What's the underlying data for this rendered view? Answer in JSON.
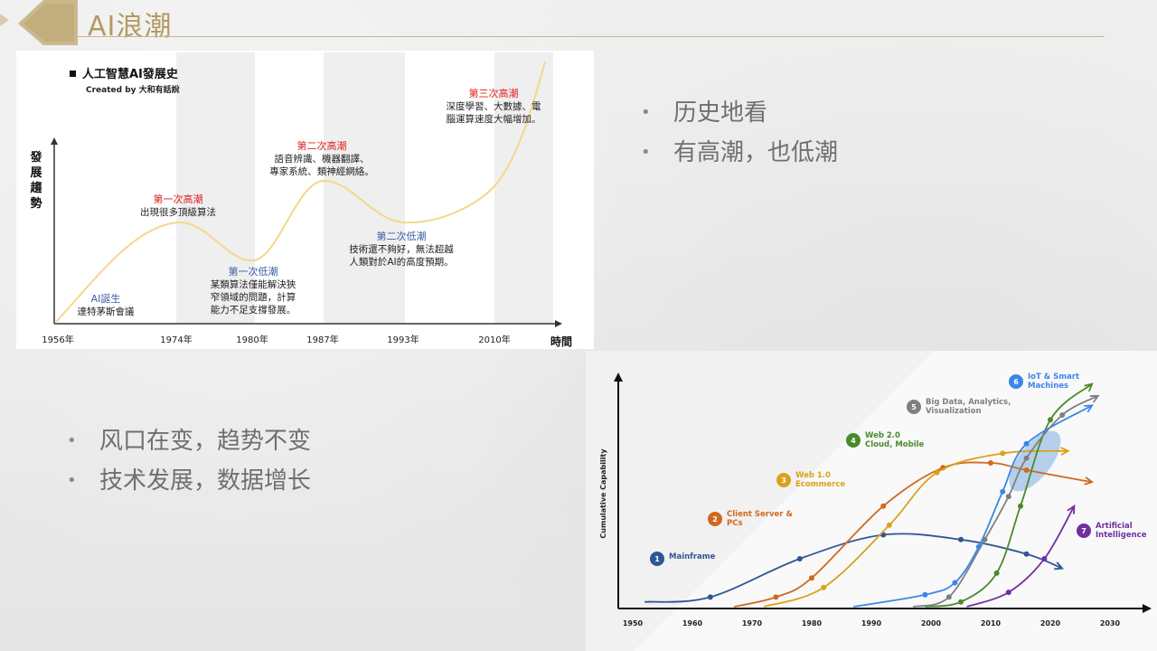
{
  "slide": {
    "title": "AI浪潮"
  },
  "colors": {
    "accent_gold": "#b39a62"
  },
  "bullets_right": [
    "历史地看",
    "有高潮，也低潮"
  ],
  "bullets_left": [
    "风口在变，趋势不变",
    "技术发展，数据增长"
  ],
  "chart_data": [
    {
      "type": "line",
      "title": "人工智慧AI發展史",
      "subtitle": "Created by 大和有話說",
      "ylabel": "發展趨勢",
      "xlabel": "時間",
      "x_ticks": [
        "1956年",
        "1974年",
        "1980年",
        "1987年",
        "1993年",
        "2010年"
      ],
      "shaded_periods": [
        [
          "1974年",
          "1980年"
        ],
        [
          "1987年",
          "1993年"
        ],
        [
          "2010年",
          ""
        ]
      ],
      "curve_color": "#f2d88a",
      "annotations": [
        {
          "heading": "AI誕生",
          "body": [
            "達特茅斯會議"
          ],
          "color": "#3b5ba5"
        },
        {
          "heading": "第一次高潮",
          "body": [
            "出現很多頂級算法"
          ],
          "color": "#e02020"
        },
        {
          "heading": "第一次低潮",
          "body": [
            "某類算法僅能解決狹",
            "窄領域的問題，計算",
            "能力不足支撐發展。"
          ],
          "color": "#3b5ba5"
        },
        {
          "heading": "第二次高潮",
          "body": [
            "語音辨識、機器翻譯、",
            "專家系統、類神經網絡。"
          ],
          "color": "#e02020"
        },
        {
          "heading": "第二次低潮",
          "body": [
            "技術還不夠好，無法超越",
            "人類對於AI的高度預期。"
          ],
          "color": "#3b5ba5"
        },
        {
          "heading": "第三次高潮",
          "body": [
            "深度學習、大數據、電",
            "腦運算速度大幅增加。"
          ],
          "color": "#e02020"
        }
      ]
    },
    {
      "type": "line",
      "ylabel": "Cumulative Capability",
      "x_ticks": [
        "1950",
        "1960",
        "1970",
        "1980",
        "1990",
        "2000",
        "2010",
        "2020",
        "2030"
      ],
      "series": [
        {
          "number": "1",
          "label": [
            "Mainframe"
          ],
          "color": "#2f5597",
          "points": [
            [
              1952,
              0.02
            ],
            [
              1963,
              0.04
            ],
            [
              1978,
              0.2
            ],
            [
              1992,
              0.3
            ],
            [
              2005,
              0.28
            ],
            [
              2016,
              0.22
            ],
            [
              2022,
              0.16
            ]
          ]
        },
        {
          "number": "2",
          "label": [
            "Client Server &",
            "PCs"
          ],
          "color": "#d0691f",
          "points": [
            [
              1967,
              0.0
            ],
            [
              1974,
              0.04
            ],
            [
              1980,
              0.12
            ],
            [
              1992,
              0.42
            ],
            [
              2002,
              0.58
            ],
            [
              2010,
              0.6
            ],
            [
              2016,
              0.57
            ],
            [
              2027,
              0.52
            ]
          ]
        },
        {
          "number": "3",
          "label": [
            "Web 1.0",
            "Ecommerce"
          ],
          "color": "#d9a21b",
          "points": [
            [
              1972,
              0.0
            ],
            [
              1982,
              0.08
            ],
            [
              1993,
              0.34
            ],
            [
              2001,
              0.56
            ],
            [
              2012,
              0.64
            ],
            [
              2023,
              0.65
            ]
          ]
        },
        {
          "number": "4",
          "label": [
            "Web 2.0",
            "Cloud, Mobile"
          ],
          "color": "#4a8a2c",
          "points": [
            [
              1999,
              0.0
            ],
            [
              2005,
              0.02
            ],
            [
              2011,
              0.14
            ],
            [
              2015,
              0.42
            ],
            [
              2020,
              0.78
            ],
            [
              2027,
              0.93
            ]
          ]
        },
        {
          "number": "5",
          "label": [
            "Big Data, Analytics,",
            "Visualization"
          ],
          "color": "#7f7f7f",
          "points": [
            [
              1997,
              0.0
            ],
            [
              2003,
              0.04
            ],
            [
              2009,
              0.28
            ],
            [
              2013,
              0.46
            ],
            [
              2016,
              0.62
            ],
            [
              2022,
              0.8
            ],
            [
              2028,
              0.88
            ]
          ]
        },
        {
          "number": "6",
          "label": [
            "IoT & Smart",
            "Machines"
          ],
          "color": "#3a86e8",
          "points": [
            [
              1987,
              0.0
            ],
            [
              1999,
              0.05
            ],
            [
              2004,
              0.1
            ],
            [
              2008,
              0.25
            ],
            [
              2012,
              0.48
            ],
            [
              2016,
              0.68
            ],
            [
              2027,
              0.84
            ]
          ]
        },
        {
          "number": "7",
          "label": [
            "Artificial",
            "Intelligence"
          ],
          "color": "#7030a0",
          "points": [
            [
              2006,
              0.0
            ],
            [
              2013,
              0.06
            ],
            [
              2019,
              0.2
            ],
            [
              2024,
              0.42
            ]
          ]
        }
      ]
    }
  ]
}
